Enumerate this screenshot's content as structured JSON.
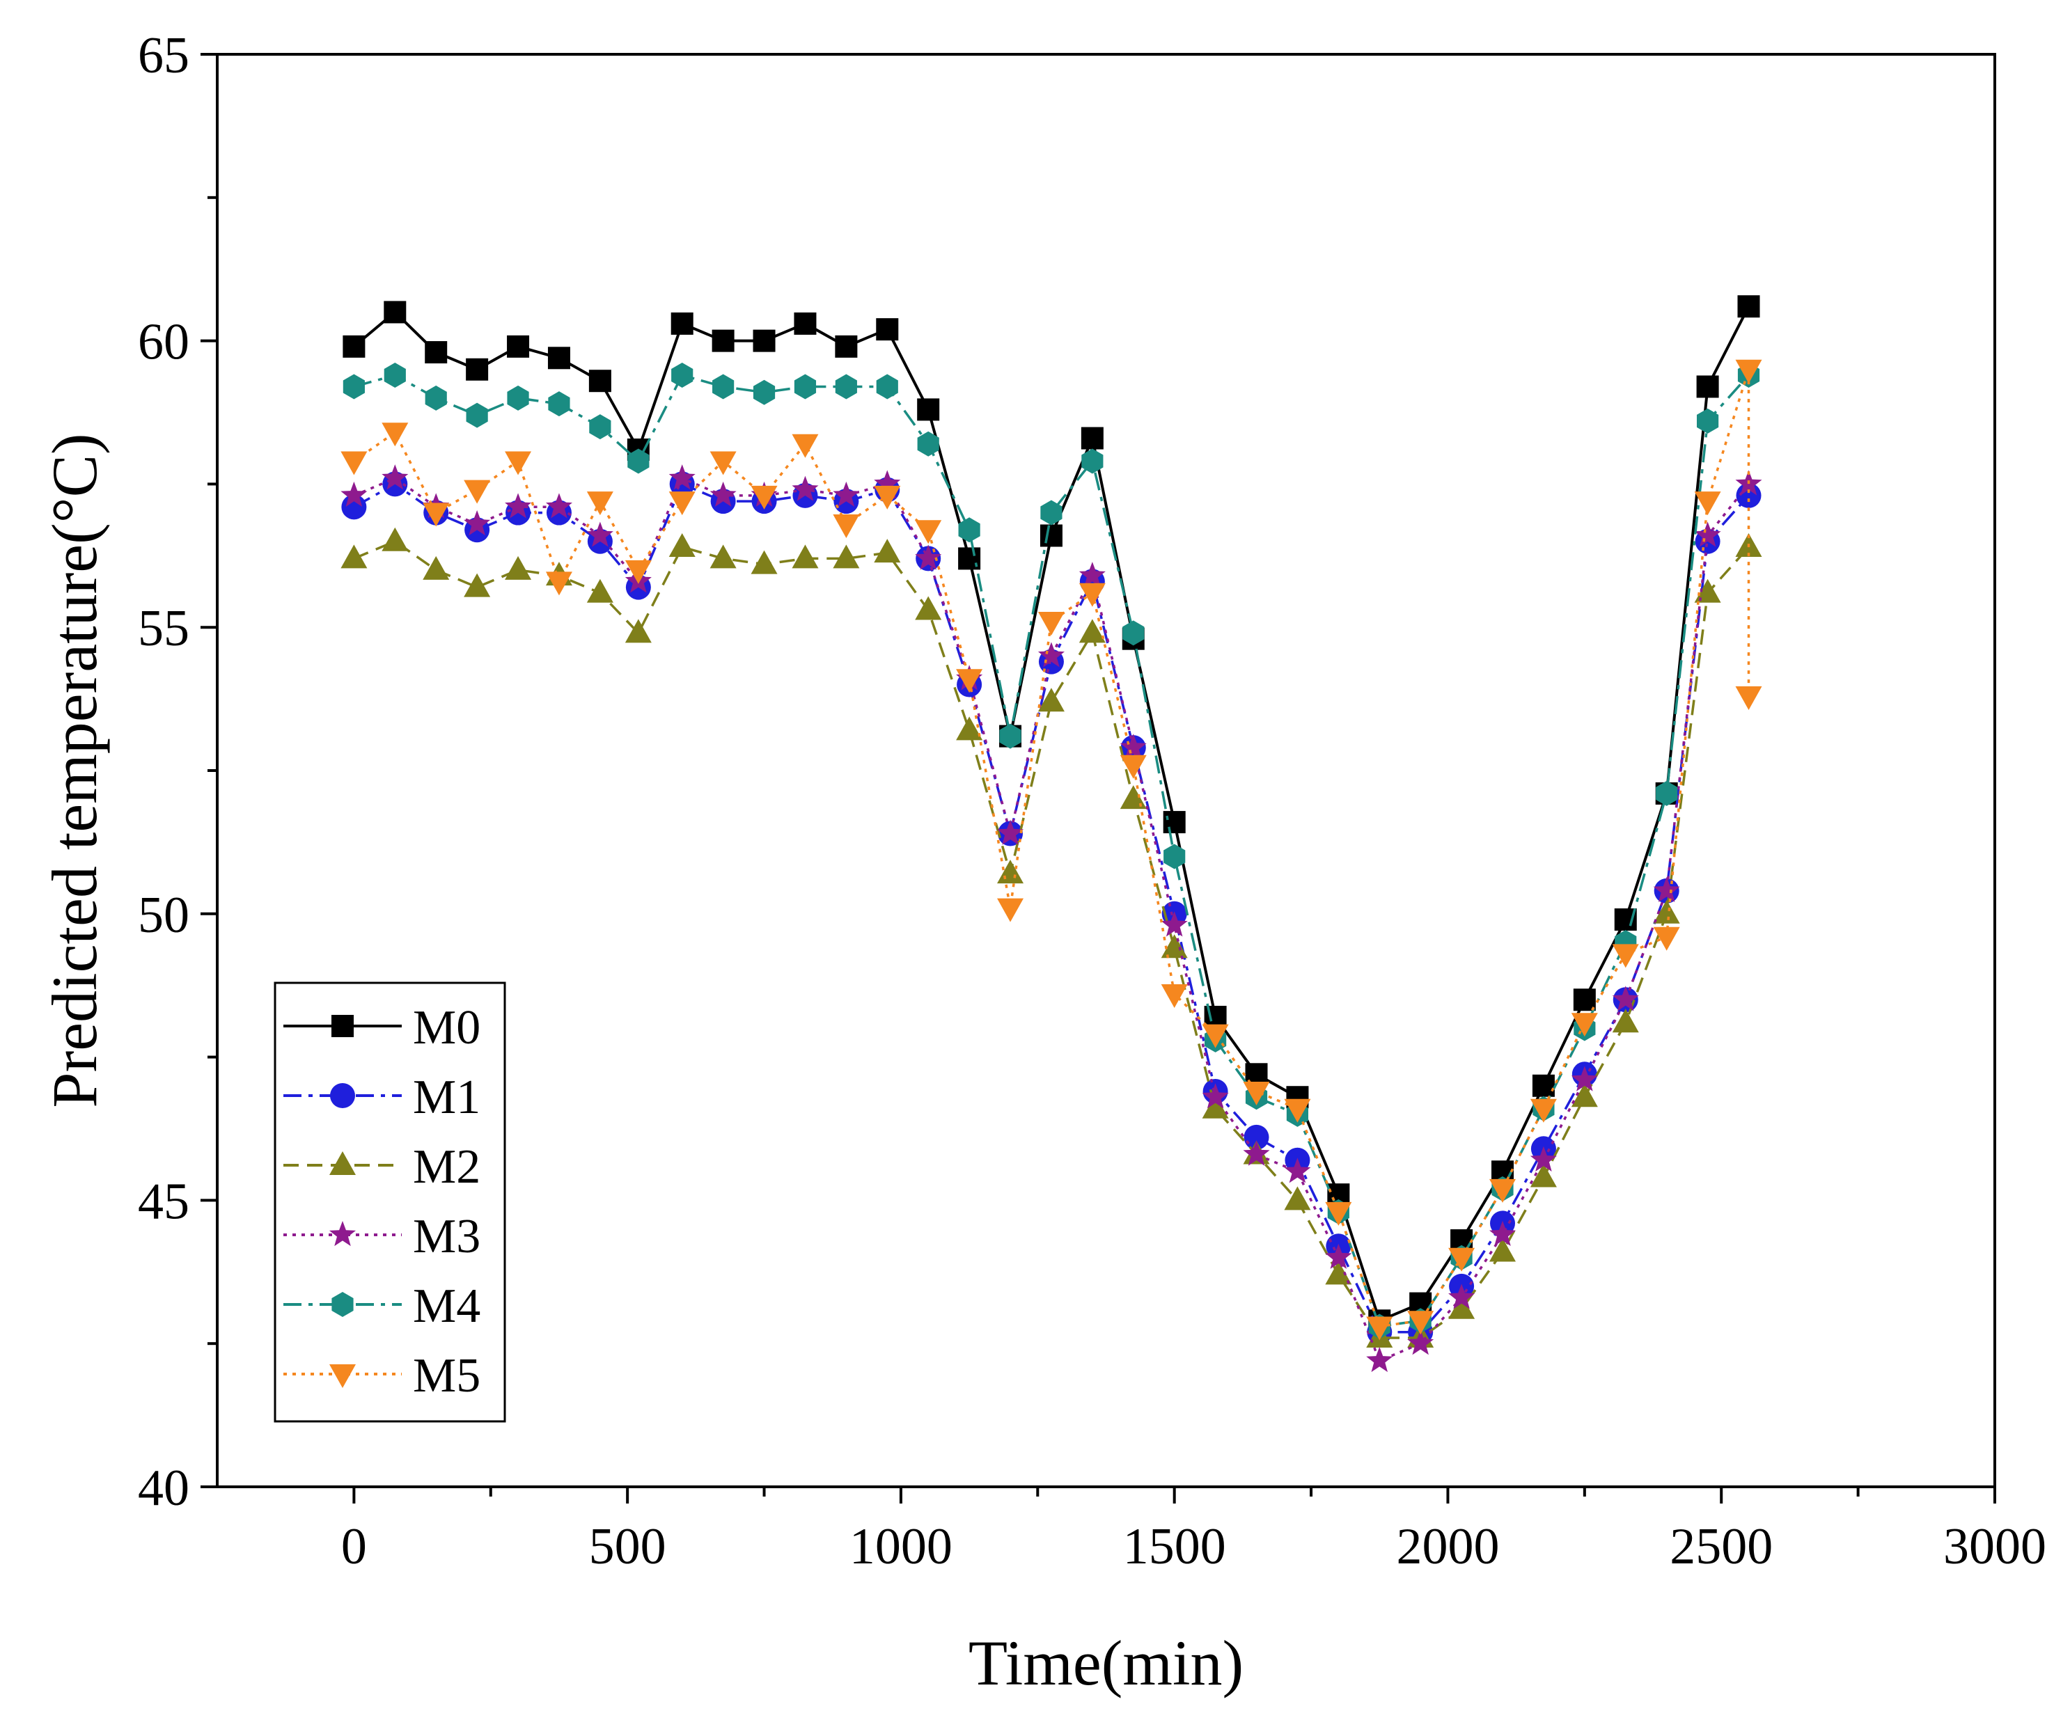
{
  "chart_data": {
    "type": "line",
    "title": "",
    "xlabel": "Time(min)",
    "ylabel": "Predicted temperature(°C)",
    "xlim": [
      -250,
      3000
    ],
    "ylim": [
      40,
      65
    ],
    "xticks": [
      0,
      500,
      1000,
      1500,
      2000,
      2500,
      3000
    ],
    "yticks": [
      40,
      45,
      50,
      55,
      60,
      65
    ],
    "grid": false,
    "legend_position": "bottom-left",
    "series": [
      {
        "name": "M0",
        "color": "#000000",
        "marker": "square",
        "dash": "solid",
        "x": [
          0,
          75,
          150,
          225,
          300,
          375,
          450,
          520,
          600,
          675,
          750,
          825,
          900,
          975,
          1050,
          1125,
          1200,
          1275,
          1350,
          1425,
          1500,
          1575,
          1650,
          1725,
          1800,
          1875,
          1950,
          2025,
          2100,
          2175,
          2250,
          2325,
          2400,
          2475,
          2550
        ],
        "y": [
          59.9,
          60.5,
          59.8,
          59.5,
          59.9,
          59.7,
          59.3,
          58.1,
          60.3,
          60.0,
          60.0,
          60.3,
          59.9,
          60.2,
          58.8,
          56.2,
          53.1,
          56.6,
          58.3,
          54.8,
          51.6,
          48.2,
          47.2,
          46.8,
          45.1,
          42.9,
          43.2,
          44.3,
          45.5,
          47.0,
          48.5,
          49.9,
          52.1,
          59.2,
          60.6
        ]
      },
      {
        "name": "M1",
        "color": "#1f1fdc",
        "marker": "circle",
        "dash": "dashdot",
        "x": [
          0,
          75,
          150,
          225,
          300,
          375,
          450,
          520,
          600,
          675,
          750,
          825,
          900,
          975,
          1050,
          1125,
          1200,
          1275,
          1350,
          1425,
          1500,
          1575,
          1650,
          1725,
          1800,
          1875,
          1950,
          2025,
          2100,
          2175,
          2250,
          2325,
          2400,
          2475,
          2550
        ],
        "y": [
          57.1,
          57.5,
          57.0,
          56.7,
          57.0,
          57.0,
          56.5,
          55.7,
          57.5,
          57.2,
          57.2,
          57.3,
          57.2,
          57.4,
          56.2,
          54.0,
          51.4,
          54.4,
          55.8,
          52.9,
          50.0,
          46.9,
          46.1,
          45.7,
          44.2,
          42.7,
          42.7,
          43.5,
          44.6,
          45.9,
          47.2,
          48.5,
          50.4,
          56.5,
          57.3
        ]
      },
      {
        "name": "M2",
        "color": "#7f7f1a",
        "marker": "triangle-up",
        "dash": "dash",
        "x": [
          0,
          75,
          150,
          225,
          300,
          375,
          450,
          520,
          600,
          675,
          750,
          825,
          900,
          975,
          1050,
          1125,
          1200,
          1275,
          1350,
          1425,
          1500,
          1575,
          1650,
          1725,
          1800,
          1875,
          1950,
          2025,
          2100,
          2175,
          2250,
          2325,
          2400,
          2475,
          2550
        ],
        "y": [
          56.2,
          56.5,
          56.0,
          55.7,
          56.0,
          55.9,
          55.6,
          54.9,
          56.4,
          56.2,
          56.1,
          56.2,
          56.2,
          56.3,
          55.3,
          53.2,
          50.7,
          53.7,
          54.9,
          52.0,
          49.4,
          46.6,
          45.8,
          45.0,
          43.7,
          42.6,
          42.6,
          43.1,
          44.1,
          45.4,
          46.8,
          48.1,
          50.0,
          55.6,
          56.4
        ]
      },
      {
        "name": "M3",
        "color": "#8e1a8e",
        "marker": "star",
        "dash": "dot",
        "x": [
          0,
          75,
          150,
          225,
          300,
          375,
          450,
          520,
          600,
          675,
          750,
          825,
          900,
          975,
          1050,
          1125,
          1200,
          1275,
          1350,
          1425,
          1500,
          1575,
          1650,
          1725,
          1800,
          1875,
          1950,
          2025,
          2100,
          2175,
          2250,
          2325,
          2400,
          2475,
          2550
        ],
        "y": [
          57.3,
          57.6,
          57.1,
          56.8,
          57.1,
          57.1,
          56.6,
          55.8,
          57.6,
          57.3,
          57.3,
          57.4,
          57.3,
          57.5,
          56.2,
          54.1,
          51.4,
          54.5,
          55.9,
          52.9,
          49.8,
          46.8,
          45.8,
          45.5,
          44.0,
          42.2,
          42.5,
          43.3,
          44.4,
          45.7,
          47.1,
          48.5,
          50.4,
          56.6,
          57.5
        ]
      },
      {
        "name": "M4",
        "color": "#1a8c82",
        "marker": "hexagon",
        "dash": "dashdot",
        "x": [
          0,
          75,
          150,
          225,
          300,
          375,
          450,
          520,
          600,
          675,
          750,
          825,
          900,
          975,
          1050,
          1125,
          1200,
          1275,
          1350,
          1425,
          1500,
          1575,
          1650,
          1725,
          1800,
          1875,
          1950,
          2025,
          2100,
          2175,
          2250,
          2325,
          2400,
          2475,
          2550
        ],
        "y": [
          59.2,
          59.4,
          59.0,
          58.7,
          59.0,
          58.9,
          58.5,
          57.9,
          59.4,
          59.2,
          59.1,
          59.2,
          59.2,
          59.2,
          58.2,
          56.7,
          53.1,
          57.0,
          57.9,
          54.9,
          51.0,
          47.8,
          46.8,
          46.5,
          44.8,
          42.8,
          42.9,
          44.0,
          45.2,
          46.6,
          48.0,
          49.5,
          52.1,
          58.6,
          59.4
        ]
      },
      {
        "name": "M5",
        "color": "#f5871f",
        "marker": "triangle-down",
        "dash": "dot",
        "x": [
          0,
          75,
          150,
          225,
          300,
          375,
          450,
          520,
          600,
          675,
          750,
          825,
          900,
          975,
          1050,
          1125,
          1200,
          1275,
          1350,
          1425,
          1500,
          1575,
          1650,
          1725,
          1800,
          1875,
          1950,
          2025,
          2100,
          2175,
          2250,
          2325,
          2400,
          2475,
          2550,
          2550
        ],
        "y": [
          57.9,
          58.4,
          57.0,
          57.4,
          57.9,
          55.8,
          57.2,
          56.0,
          57.2,
          57.9,
          57.3,
          58.2,
          56.8,
          57.3,
          56.7,
          54.1,
          50.1,
          55.1,
          55.6,
          52.6,
          48.6,
          47.9,
          46.9,
          46.6,
          44.8,
          42.8,
          42.9,
          44.0,
          45.2,
          46.6,
          48.1,
          49.3,
          49.6,
          57.2,
          59.5,
          53.8
        ]
      }
    ]
  }
}
